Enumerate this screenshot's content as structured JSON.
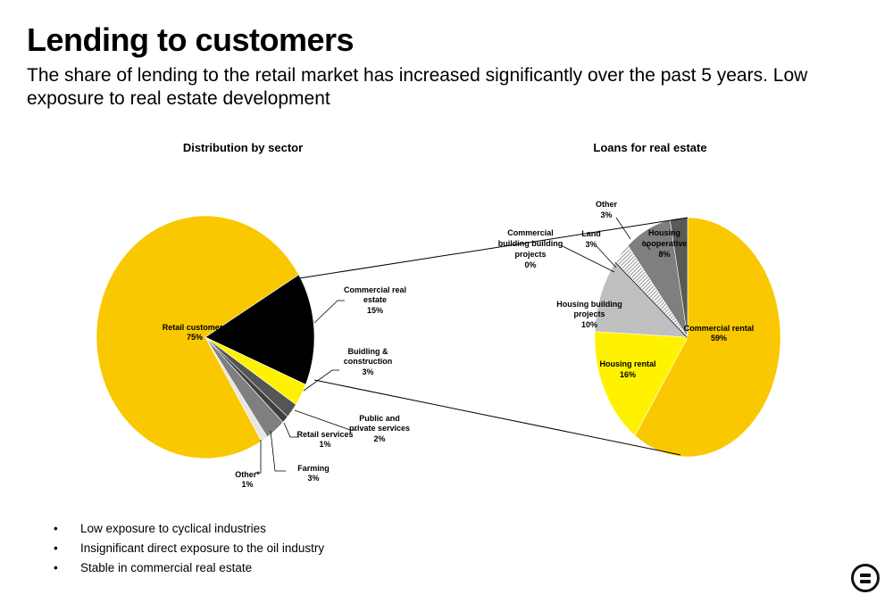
{
  "page": {
    "title": "Lending to customers",
    "subtitle": "The share of lending to the retail market has increased significantly over the past 5 years. Low exposure to real estate development"
  },
  "bullets": [
    "Low exposure to cyclical industries",
    "Insignificant direct exposure to the oil industry",
    "Stable in commercial real estate"
  ],
  "logo_icon": "equals-circle-logo",
  "chart_data": [
    {
      "type": "pie",
      "title": "Distribution by sector",
      "slices": [
        {
          "name": "Retail customers",
          "value": 75,
          "label": "75%",
          "color": "#F9C800"
        },
        {
          "name": "Commercial real estate",
          "value": 15,
          "label": "15%",
          "color": "#000000"
        },
        {
          "name": "Buidling & construction",
          "value": 3,
          "label": "3%",
          "color": "#FFF200"
        },
        {
          "name": "Public and private services",
          "value": 2,
          "label": "2%",
          "color": "#555555"
        },
        {
          "name": "Retail services",
          "value": 1,
          "label": "1%",
          "color": "#404040"
        },
        {
          "name": "Farming",
          "value": 3,
          "label": "3%",
          "color": "#7F7F7F"
        },
        {
          "name": "Other*",
          "value": 1,
          "label": "1%",
          "color": "#E6E6E6"
        }
      ]
    },
    {
      "type": "pie",
      "title": "Loans for real estate",
      "slices": [
        {
          "name": "Commercial rental",
          "value": 59,
          "label": "59%",
          "color": "#F9C800"
        },
        {
          "name": "Housing rental",
          "value": 16,
          "label": "16%",
          "color": "#FFF200"
        },
        {
          "name": "Housing building projects",
          "value": 10,
          "label": "10%",
          "color": "#BFBFBF"
        },
        {
          "name": "Commercial building building projects",
          "value": 0,
          "label": "0%",
          "color": "#000000"
        },
        {
          "name": "Land",
          "value": 3,
          "label": "3%",
          "color": "#FFFFFF",
          "pattern": "hatch"
        },
        {
          "name": "Housing cooperative",
          "value": 8,
          "label": "8%",
          "color": "#7F7F7F"
        },
        {
          "name": "Other",
          "value": 3,
          "label": "3%",
          "color": "#595959"
        }
      ]
    }
  ]
}
